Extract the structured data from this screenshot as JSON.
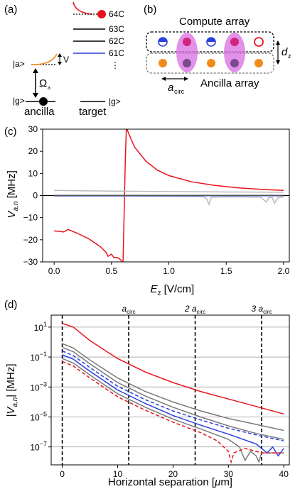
{
  "panels": {
    "a": "(a)",
    "b": "(b)",
    "c": "(c)",
    "d": "(d)"
  },
  "panel_a": {
    "levels": [
      "64C",
      "63C",
      "62C",
      "61C"
    ],
    "dots": "⋮",
    "ket_a": "|a>",
    "ket_g": "|g>",
    "ket_g_target": "|g>",
    "v_label": "V",
    "omega": "Ω",
    "omega_sub": "a",
    "ancilla": "ancilla",
    "target": "target",
    "colors": {
      "red": "#e8141c",
      "blue": "#2a3fe0",
      "orange": "#f28a1a"
    }
  },
  "panel_b": {
    "compute_label": "Compute array",
    "ancilla_label": "Ancilla array",
    "dz": "d",
    "dz_sub": "z",
    "acirc": "a",
    "acirc_sub": "circ",
    "colors": {
      "purple": "#d86ee0",
      "magenta": "#d0247f",
      "darkpurple": "#7a4a8f",
      "orange": "#f28a1a",
      "blue": "#2a3fe0",
      "red": "#e8141c"
    }
  },
  "chart_data": [
    {
      "type": "line",
      "panel": "c",
      "xlabel": "E",
      "xlabel_sub": "z",
      "xlabel_unit": " [V/cm]",
      "ylabel": "V",
      "ylabel_sub": "a,n",
      "ylabel_unit": " [MHz]",
      "xlim": [
        -0.1,
        2.05
      ],
      "ylim": [
        -30,
        30
      ],
      "xticks": [
        0.0,
        0.5,
        1.0,
        1.5,
        2.0
      ],
      "xtick_labels": [
        "0.0",
        "0.5",
        "1.0",
        "1.5",
        "2.0"
      ],
      "yticks": [
        -30,
        -20,
        -10,
        0,
        10,
        20,
        30
      ],
      "ytick_labels": [
        "−30",
        "−20",
        "−10",
        "0",
        "10",
        "20",
        "30"
      ],
      "series": [
        {
          "color": "#e8141c",
          "x": [
            0.0,
            0.05,
            0.08,
            0.1,
            0.12,
            0.2,
            0.3,
            0.4,
            0.45,
            0.47,
            0.5,
            0.52,
            0.55,
            0.58,
            0.6
          ],
          "y": [
            -16,
            -16.2,
            -16.5,
            -16.0,
            -15.3,
            -17.0,
            -19.5,
            -23,
            -25.5,
            -27.5,
            -26.5,
            -28,
            -28,
            -29,
            -31
          ]
        },
        {
          "color": "#e8141c",
          "x": [
            0.6,
            0.605,
            0.62,
            0.63,
            0.65,
            0.7,
            0.8,
            0.9,
            1.0,
            1.2,
            1.4,
            1.6,
            1.8,
            2.0
          ],
          "y": [
            -31,
            -20,
            15,
            31,
            28,
            22,
            15.5,
            11.5,
            9.0,
            6.2,
            4.6,
            3.5,
            2.8,
            2.3
          ]
        },
        {
          "color": "#bbbbbb",
          "x": [
            0.0,
            0.5,
            1.0,
            1.5,
            2.0
          ],
          "y": [
            2.3,
            2.0,
            1.8,
            1.6,
            1.5
          ]
        },
        {
          "color": "#bbbbbb",
          "x": [
            0.0,
            0.5,
            1.0,
            1.3,
            1.33,
            1.35,
            1.37,
            1.5,
            1.8,
            1.85,
            1.87,
            1.9,
            1.92,
            1.95,
            2.0
          ],
          "y": [
            -0.3,
            -0.3,
            -0.4,
            -0.5,
            -1.5,
            -4.0,
            -0.8,
            -0.6,
            -0.7,
            -3.0,
            -1.0,
            -0.8,
            -3.5,
            -1.0,
            -0.6
          ]
        },
        {
          "color": "#2a3fe0",
          "x": [
            0.0,
            2.0
          ],
          "y": [
            -0.1,
            -0.1
          ]
        },
        {
          "color": "#555555",
          "x": [
            0.0,
            2.0
          ],
          "y": [
            0.1,
            0.1
          ]
        }
      ]
    },
    {
      "type": "line",
      "panel": "d",
      "yscale": "log",
      "xlabel": "Horizontal separation [",
      "xlabel_mu": "μ",
      "xlabel_end": "m]",
      "ylabel": "|V",
      "ylabel_sub": "a,n",
      "ylabel_unit": "| [MHz]",
      "xlim": [
        -2,
        41
      ],
      "ylim_exp": [
        -8.2,
        1.8
      ],
      "xticks": [
        0,
        10,
        20,
        30,
        40
      ],
      "xtick_labels": [
        "0",
        "10",
        "20",
        "30",
        "40"
      ],
      "yticks_exp": [
        1,
        -1,
        -3,
        -5,
        -7
      ],
      "ytick_base": "10",
      "ytick_exps": [
        "1",
        "−1",
        "−3",
        "−5",
        "−7"
      ],
      "vlines": [
        0,
        12,
        24,
        36
      ],
      "annotations": [
        {
          "x": 12,
          "pre": "",
          "label": "a",
          "sub": "circ"
        },
        {
          "x": 24,
          "pre": "2 ",
          "label": "a",
          "sub": "circ"
        },
        {
          "x": 36,
          "pre": "3 ",
          "label": "a",
          "sub": "circ"
        }
      ],
      "series": [
        {
          "color": "#e8141c",
          "dash": false,
          "x": [
            0,
            2,
            5,
            10,
            15,
            20,
            25,
            30,
            35,
            40
          ],
          "log10y": [
            1.25,
            1.0,
            0.1,
            -1.1,
            -2.0,
            -2.7,
            -3.3,
            -3.8,
            -4.3,
            -4.8
          ]
        },
        {
          "color": "#7a7a7a",
          "dash": false,
          "x": [
            0,
            2,
            5,
            10,
            15,
            20,
            25,
            30,
            35,
            40
          ],
          "log10y": [
            -0.1,
            -0.4,
            -1.2,
            -2.4,
            -3.3,
            -4.0,
            -4.6,
            -5.1,
            -5.5,
            -5.9
          ]
        },
        {
          "color": "#7a7a7a",
          "dash": false,
          "x": [
            0,
            2,
            5,
            10,
            15,
            20,
            25,
            30,
            35,
            40
          ],
          "log10y": [
            -0.35,
            -0.65,
            -1.45,
            -2.7,
            -3.6,
            -4.35,
            -5.0,
            -5.6,
            -6.1,
            -6.5
          ]
        },
        {
          "color": "#2a3fe0",
          "dash": true,
          "x": [
            0,
            2,
            5,
            10,
            15,
            20,
            25,
            30,
            35,
            40
          ],
          "log10y": [
            -0.6,
            -0.9,
            -1.7,
            -2.95,
            -3.85,
            -4.6,
            -5.2,
            -5.75,
            -6.2,
            -6.6
          ]
        },
        {
          "color": "#2a3fe0",
          "dash": false,
          "x": [
            0,
            2,
            5,
            10,
            15,
            20,
            25,
            30,
            35,
            37,
            38,
            39,
            40
          ],
          "log10y": [
            -0.85,
            -1.15,
            -1.95,
            -3.2,
            -4.1,
            -4.9,
            -5.55,
            -6.15,
            -6.8,
            -7.4,
            -7.0,
            -7.6,
            -7.1
          ]
        },
        {
          "color": "#7a7a7a",
          "dash": false,
          "x": [
            0,
            2,
            5,
            10,
            15,
            20,
            25,
            30,
            32,
            33,
            34,
            35,
            35.5,
            36,
            38,
            40
          ],
          "log10y": [
            -1.1,
            -1.4,
            -2.2,
            -3.45,
            -4.35,
            -5.15,
            -5.8,
            -6.5,
            -7.0,
            -7.9,
            -7.3,
            -7.6,
            -8.0,
            -7.4,
            -7.4,
            -7.4
          ]
        },
        {
          "color": "#e8141c",
          "dash": true,
          "x": [
            0,
            2,
            5,
            10,
            15,
            20,
            25,
            28,
            30,
            30.5,
            31,
            33,
            36,
            40
          ],
          "log10y": [
            -1.3,
            -1.6,
            -2.4,
            -3.65,
            -4.55,
            -5.35,
            -6.05,
            -6.6,
            -7.3,
            -8.0,
            -7.4,
            -7.1,
            -7.4,
            -7.4
          ]
        }
      ]
    }
  ]
}
